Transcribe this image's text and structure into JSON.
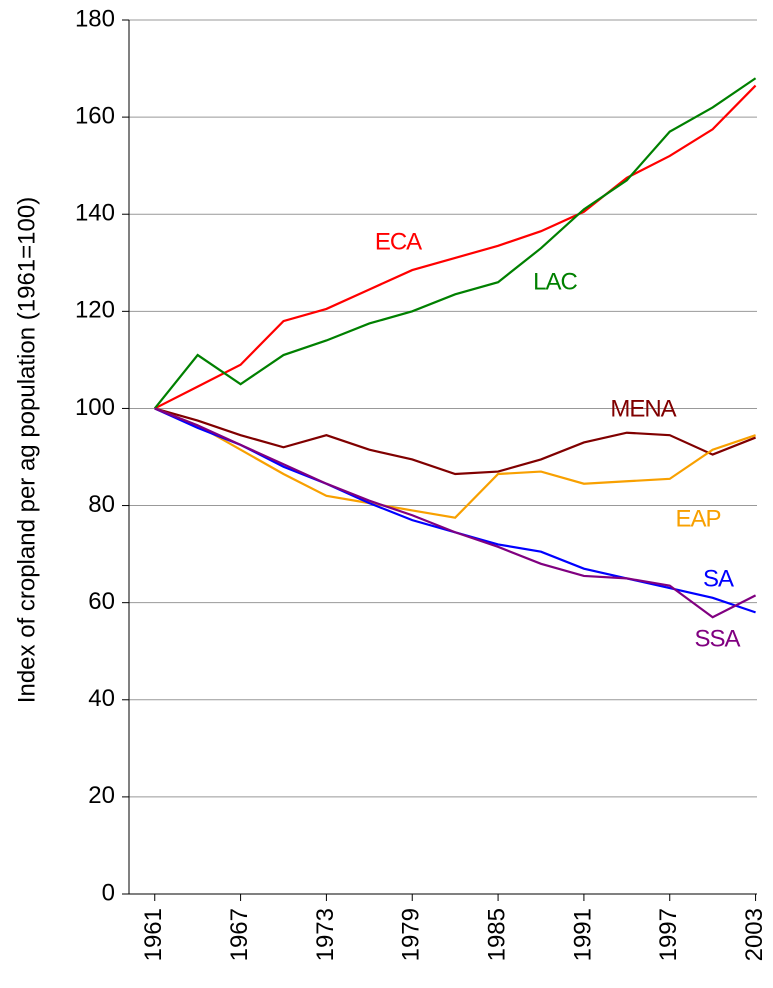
{
  "chart_data": {
    "type": "line",
    "y_label": "Index of cropland per ag population (1961=100)",
    "x": [
      1961,
      1964,
      1967,
      1970,
      1973,
      1976,
      1979,
      1982,
      1985,
      1988,
      1991,
      1994,
      1997,
      2000,
      2003
    ],
    "xlim": [
      1959.2,
      2003.1
    ],
    "xticks": [
      1961,
      1967,
      1973,
      1979,
      1985,
      1991,
      1997,
      2003
    ],
    "ylim": [
      0,
      180
    ],
    "yticks": [
      0,
      20,
      40,
      60,
      80,
      100,
      120,
      140,
      160,
      180
    ],
    "grid": true,
    "series": [
      {
        "name": "ECA",
        "color": "#ff0000",
        "values": [
          100,
          104.5,
          109,
          118,
          120.5,
          124.5,
          128.5,
          131,
          133.5,
          136.5,
          140.5,
          147.5,
          152,
          157.5,
          166.5
        ]
      },
      {
        "name": "LAC",
        "color": "#008000",
        "values": [
          100,
          111,
          105,
          111,
          114,
          117.5,
          120,
          123.5,
          126,
          133,
          141,
          147,
          157,
          162,
          168
        ]
      },
      {
        "name": "MENA",
        "color": "#800000",
        "values": [
          100,
          97.5,
          94.5,
          92,
          94.5,
          91.5,
          89.5,
          86.5,
          87,
          89.5,
          93,
          95,
          94.5,
          90.5,
          94
        ]
      },
      {
        "name": "EAP",
        "color": "#f8a000",
        "values": [
          100,
          96.5,
          91.5,
          86.5,
          82,
          80.5,
          79,
          77.5,
          86.5,
          87,
          84.5,
          85,
          85.5,
          91.5,
          94.5
        ]
      },
      {
        "name": "SA",
        "color": "#0000ff",
        "values": [
          100,
          96,
          92.5,
          88,
          84.5,
          80.5,
          77,
          74.5,
          72,
          70.5,
          67,
          65,
          63,
          61,
          58
        ]
      },
      {
        "name": "SSA",
        "color": "#800080",
        "values": [
          100,
          96.5,
          92.5,
          88.5,
          84.5,
          81,
          78,
          74.5,
          71.5,
          68,
          65.5,
          65,
          63.5,
          57,
          61.5
        ]
      }
    ]
  }
}
